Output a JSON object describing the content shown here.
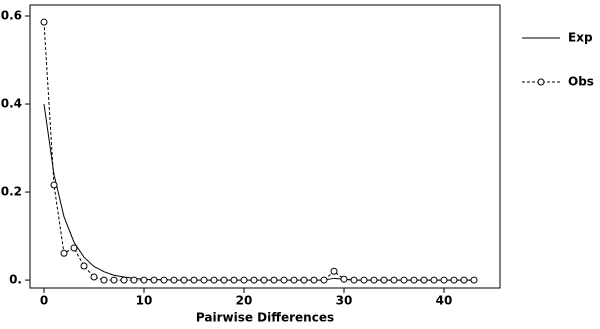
{
  "chart_data": {
    "type": "line",
    "x_label": "Pairwise Differences",
    "x": [
      0,
      1,
      2,
      3,
      4,
      5,
      6,
      7,
      8,
      9,
      10,
      11,
      12,
      13,
      14,
      15,
      16,
      17,
      18,
      19,
      20,
      21,
      22,
      23,
      24,
      25,
      26,
      27,
      28,
      29,
      30,
      31,
      32,
      33,
      34,
      35,
      36,
      37,
      38,
      39,
      40,
      41,
      42,
      43
    ],
    "series": [
      {
        "name": "Exp",
        "color": "#000000",
        "dash": false,
        "marker": false,
        "values": [
          0.4,
          0.24,
          0.144,
          0.086,
          0.052,
          0.031,
          0.019,
          0.011,
          0.007,
          0.004,
          0.002,
          0.001,
          0.001,
          0,
          0,
          0,
          0,
          0,
          0,
          0,
          0,
          0,
          0,
          0,
          0,
          0,
          0,
          0,
          0,
          0.004,
          0.002,
          0,
          0,
          0,
          0,
          0,
          0,
          0,
          0,
          0,
          0,
          0,
          0,
          0
        ]
      },
      {
        "name": "Obs",
        "color": "#000000",
        "dash": true,
        "marker": true,
        "values": [
          0.586,
          0.216,
          0.061,
          0.073,
          0.032,
          0.007,
          0,
          0,
          0,
          0,
          0,
          0,
          0,
          0,
          0,
          0,
          0,
          0,
          0,
          0,
          0,
          0,
          0,
          0,
          0,
          0,
          0,
          0,
          0,
          0.02,
          0.002,
          0,
          0,
          0,
          0,
          0,
          0,
          0,
          0,
          0,
          0,
          0,
          0,
          0
        ]
      }
    ],
    "xlim": [
      -1.4,
      45.6
    ],
    "ylim": [
      -0.018,
      0.625
    ],
    "xticks": [
      0,
      10,
      20,
      30,
      40
    ],
    "yticks": [
      {
        "value": 0,
        "label": "0."
      },
      0.2,
      0.4,
      0.6
    ],
    "legend": "right"
  }
}
